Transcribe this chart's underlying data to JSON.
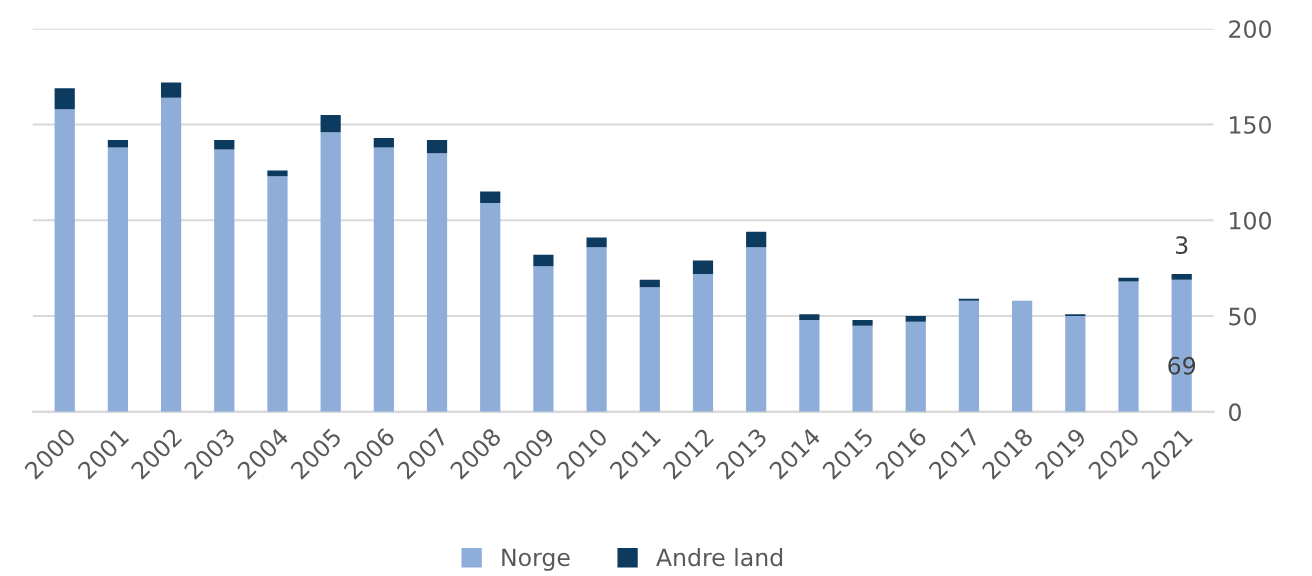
{
  "chart_data": {
    "type": "bar",
    "stacked": true,
    "categories": [
      "2000",
      "2001",
      "2002",
      "2003",
      "2004",
      "2005",
      "2006",
      "2007",
      "2008",
      "2009",
      "2010",
      "2011",
      "2012",
      "2013",
      "2014",
      "2015",
      "2016",
      "2017",
      "2018",
      "2019",
      "2020",
      "2021"
    ],
    "series": [
      {
        "name": "Norge",
        "color": "#8eadd8",
        "values": [
          158,
          138,
          164,
          137,
          123,
          146,
          138,
          135,
          109,
          76,
          86,
          65,
          72,
          86,
          48,
          45,
          47,
          58,
          58,
          50,
          68,
          69
        ],
        "value_labels": [
          null,
          null,
          null,
          null,
          null,
          null,
          null,
          null,
          null,
          null,
          null,
          null,
          null,
          null,
          null,
          null,
          null,
          null,
          null,
          null,
          null,
          "69"
        ]
      },
      {
        "name": "Andre land",
        "color": "#0d3a5f",
        "values": [
          11,
          4,
          8,
          5,
          3,
          9,
          5,
          7,
          6,
          6,
          5,
          4,
          7,
          8,
          3,
          3,
          3,
          1,
          0,
          1,
          2,
          3
        ],
        "value_labels": [
          null,
          null,
          null,
          null,
          null,
          null,
          null,
          null,
          null,
          null,
          null,
          null,
          null,
          null,
          null,
          null,
          null,
          null,
          null,
          null,
          null,
          "3"
        ]
      }
    ],
    "ylim": [
      0,
      200
    ],
    "yticks": [
      0,
      50,
      100,
      150,
      200
    ],
    "grid": "y",
    "legend": "bottom"
  }
}
